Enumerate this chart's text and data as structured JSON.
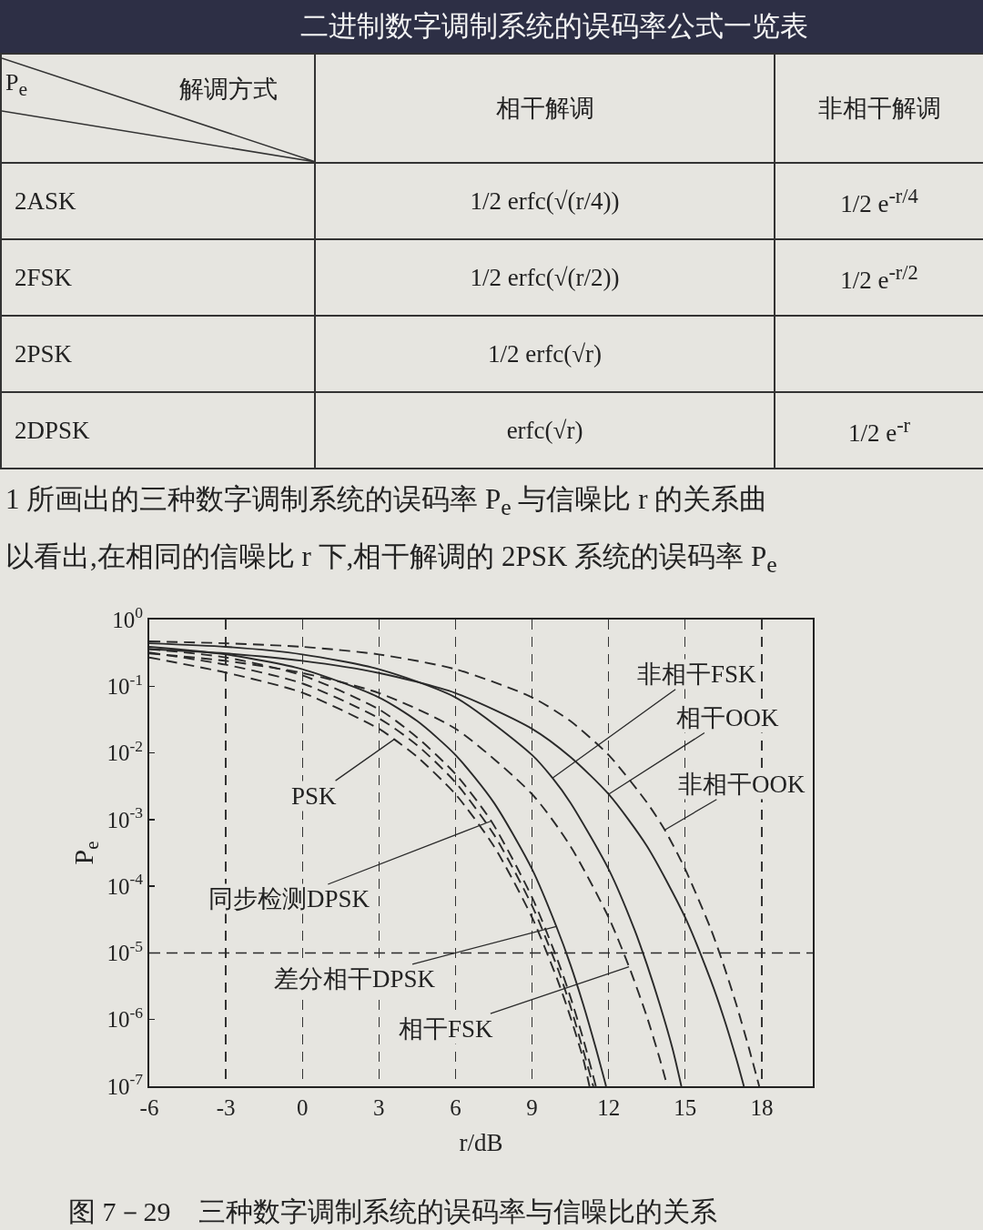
{
  "chart_data": [
    {
      "type": "other",
      "title": "二进制数字调制系统的误码率公式一览表",
      "xlabel": "解调方式",
      "ylabel": "P$_{e}$",
      "categories": [
        "相干解调",
        "非相干解调"
      ],
      "y_categories": [
        "2ASK",
        "2FSK",
        "2PSK",
        "2DPSK"
      ],
      "cell_labels": [
        [
          "1/2 erfc(√(r/4))",
          "1/2 e$^{-r/4}$"
        ],
        [
          "1/2 erfc(√(r/2))",
          "1/2 e$^{-r/2}$"
        ],
        [
          "1/2 erfc(√r)",
          null
        ],
        [
          "erfc(√r)",
          "1/2 e$^{-r}$"
        ]
      ]
    },
    {
      "type": "line",
      "title": "图 7－29　三种数字调制系统的误码率与信噪比的关系",
      "annotations": [
        "1 所画出的三种数字调制系统的误码率 P$_{e}$ 与信噪比 r 的关系曲",
        "以看出,在相同的信噪比 r 下,相干解调的 2PSK 系统的误码率 P$_{e}$",
        {
          "text": "PSK",
          "x": 3.6,
          "y": 0.016
        },
        {
          "text": "同步检测DPSK",
          "x": 7.4,
          "y": 0.00095
        },
        {
          "text": "差分相干DPSK",
          "x": 9.95,
          "y": 2.5e-05
        },
        {
          "text": "相干FSK",
          "x": 12.8,
          "y": 6.2e-06
        },
        {
          "text": "非相干FSK",
          "x": 9.8,
          "y": 0.0042
        },
        {
          "text": "相干OOK",
          "x": 12,
          "y": 0.0024
        },
        {
          "text": "非相干OOK",
          "x": 14.2,
          "y": 0.0007
        }
      ],
      "xlabel": "r/dB",
      "ylabel": "P$_{e}$",
      "xlim": [
        -6,
        20
      ],
      "xticks": [
        -6,
        -3,
        0,
        3,
        6,
        9,
        12,
        15,
        18
      ],
      "ylim": [
        1e-07,
        1
      ],
      "yticks": [
        {
          "value": 1,
          "label": "10$^{0}$"
        },
        {
          "value": 0.1,
          "label": "10$^{-1}$"
        },
        {
          "value": 0.01,
          "label": "10$^{-2}$"
        },
        {
          "value": 0.001,
          "label": "10$^{-3}$"
        },
        {
          "value": 0.0001,
          "label": "10$^{-4}$"
        },
        {
          "value": 1e-05,
          "label": "10$^{-5}$"
        },
        {
          "value": 1e-06,
          "label": "10$^{-6}$"
        },
        {
          "value": 1e-07,
          "label": "10$^{-7}$"
        }
      ],
      "log": "y",
      "grid": "x",
      "marker": "none",
      "ref_lines": [
        {
          "axis": "y",
          "value": 1e-05,
          "line_style": "dashed"
        }
      ],
      "series": [
        {
          "color": "#2a2a2a",
          "line_style": "dashed",
          "x": [
            -6,
            -3,
            0,
            3,
            3.6,
            4.5,
            6,
            7.5,
            9,
            10,
            10.5,
            11,
            11.25
          ],
          "values": [
            0.27,
            0.16,
            0.08,
            0.023,
            0.016,
            0.0087,
            0.0024,
            0.0004,
            3.4e-05,
            3.9e-06,
            1.1e-06,
            2.6e-07,
            1e-07
          ]
        },
        {
          "color": "#2a2a2a",
          "line_style": "dashed",
          "x": [
            -6,
            -3,
            0,
            3,
            4.5,
            6,
            7.5,
            9,
            10,
            10.5,
            11,
            11.4
          ],
          "values": [
            0.32,
            0.21,
            0.11,
            0.033,
            0.013,
            0.0036,
            0.0006,
            5.1e-05,
            5.9e-06,
            1.6e-06,
            3.5e-07,
            1e-07
          ]
        },
        {
          "color": "#2a2a2a",
          "line_style": "dashed",
          "x": [
            -6,
            -3,
            0,
            3,
            4.5,
            6,
            7.4,
            9,
            10,
            10.5,
            11,
            11.5
          ],
          "values": [
            0.36,
            0.27,
            0.145,
            0.045,
            0.017,
            0.0048,
            0.00095,
            6.8e-05,
            7.8e-06,
            2.2e-06,
            5.2e-07,
            1e-07
          ]
        },
        {
          "color": "#2a2a2a",
          "line_style": "solid",
          "x": [
            -6,
            -3,
            0,
            3,
            4.5,
            6,
            7.5,
            9,
            9.95,
            10.5,
            11,
            11.5,
            11.9
          ],
          "values": [
            0.39,
            0.3,
            0.18,
            0.068,
            0.03,
            0.0093,
            0.0018,
            0.00018,
            2.5e-05,
            6.7e-06,
            1.7e-06,
            3.7e-07,
            1e-07
          ]
        },
        {
          "color": "#2a2a2a",
          "line_style": "dashed",
          "x": [
            -6,
            -3,
            0,
            3,
            6,
            9,
            10.5,
            12,
            12.8,
            13.5,
            14,
            14.3
          ],
          "values": [
            0.31,
            0.24,
            0.158,
            0.079,
            0.023,
            0.0024,
            0.0004,
            3.4e-05,
            6.2e-06,
            1.1e-06,
            2.6e-07,
            1e-07
          ]
        },
        {
          "color": "#2a2a2a",
          "line_style": "solid",
          "x": [
            -6,
            -3,
            0,
            3,
            6,
            9,
            9.8,
            10.5,
            12,
            13,
            13.5,
            14,
            14.5,
            14.85
          ],
          "values": [
            0.44,
            0.39,
            0.3,
            0.18,
            0.068,
            0.0093,
            0.0042,
            0.0018,
            0.00018,
            2.3e-05,
            6.7e-06,
            1.7e-06,
            3.7e-07,
            1e-07
          ]
        },
        {
          "color": "#2a2a2a",
          "line_style": "solid",
          "x": [
            -6,
            -3,
            0,
            3,
            6,
            9,
            10.5,
            12,
            13.5,
            15,
            16,
            16.5,
            17,
            17.3
          ],
          "values": [
            0.36,
            0.31,
            0.24,
            0.158,
            0.079,
            0.023,
            0.0087,
            0.0024,
            0.0004,
            3.4e-05,
            3.9e-06,
            1.1e-06,
            2.6e-07,
            1e-07
          ]
        },
        {
          "color": "#2a2a2a",
          "line_style": "dashed",
          "x": [
            -6,
            -3,
            0,
            3,
            6,
            9,
            10.5,
            12,
            13.5,
            14.2,
            15,
            16,
            16.5,
            17,
            17.5,
            17.9
          ],
          "values": [
            0.47,
            0.44,
            0.39,
            0.3,
            0.18,
            0.068,
            0.03,
            0.0093,
            0.0018,
            0.0007,
            0.00018,
            2.3e-05,
            6.7e-06,
            1.7e-06,
            3.7e-07,
            1e-07
          ]
        }
      ]
    }
  ]
}
